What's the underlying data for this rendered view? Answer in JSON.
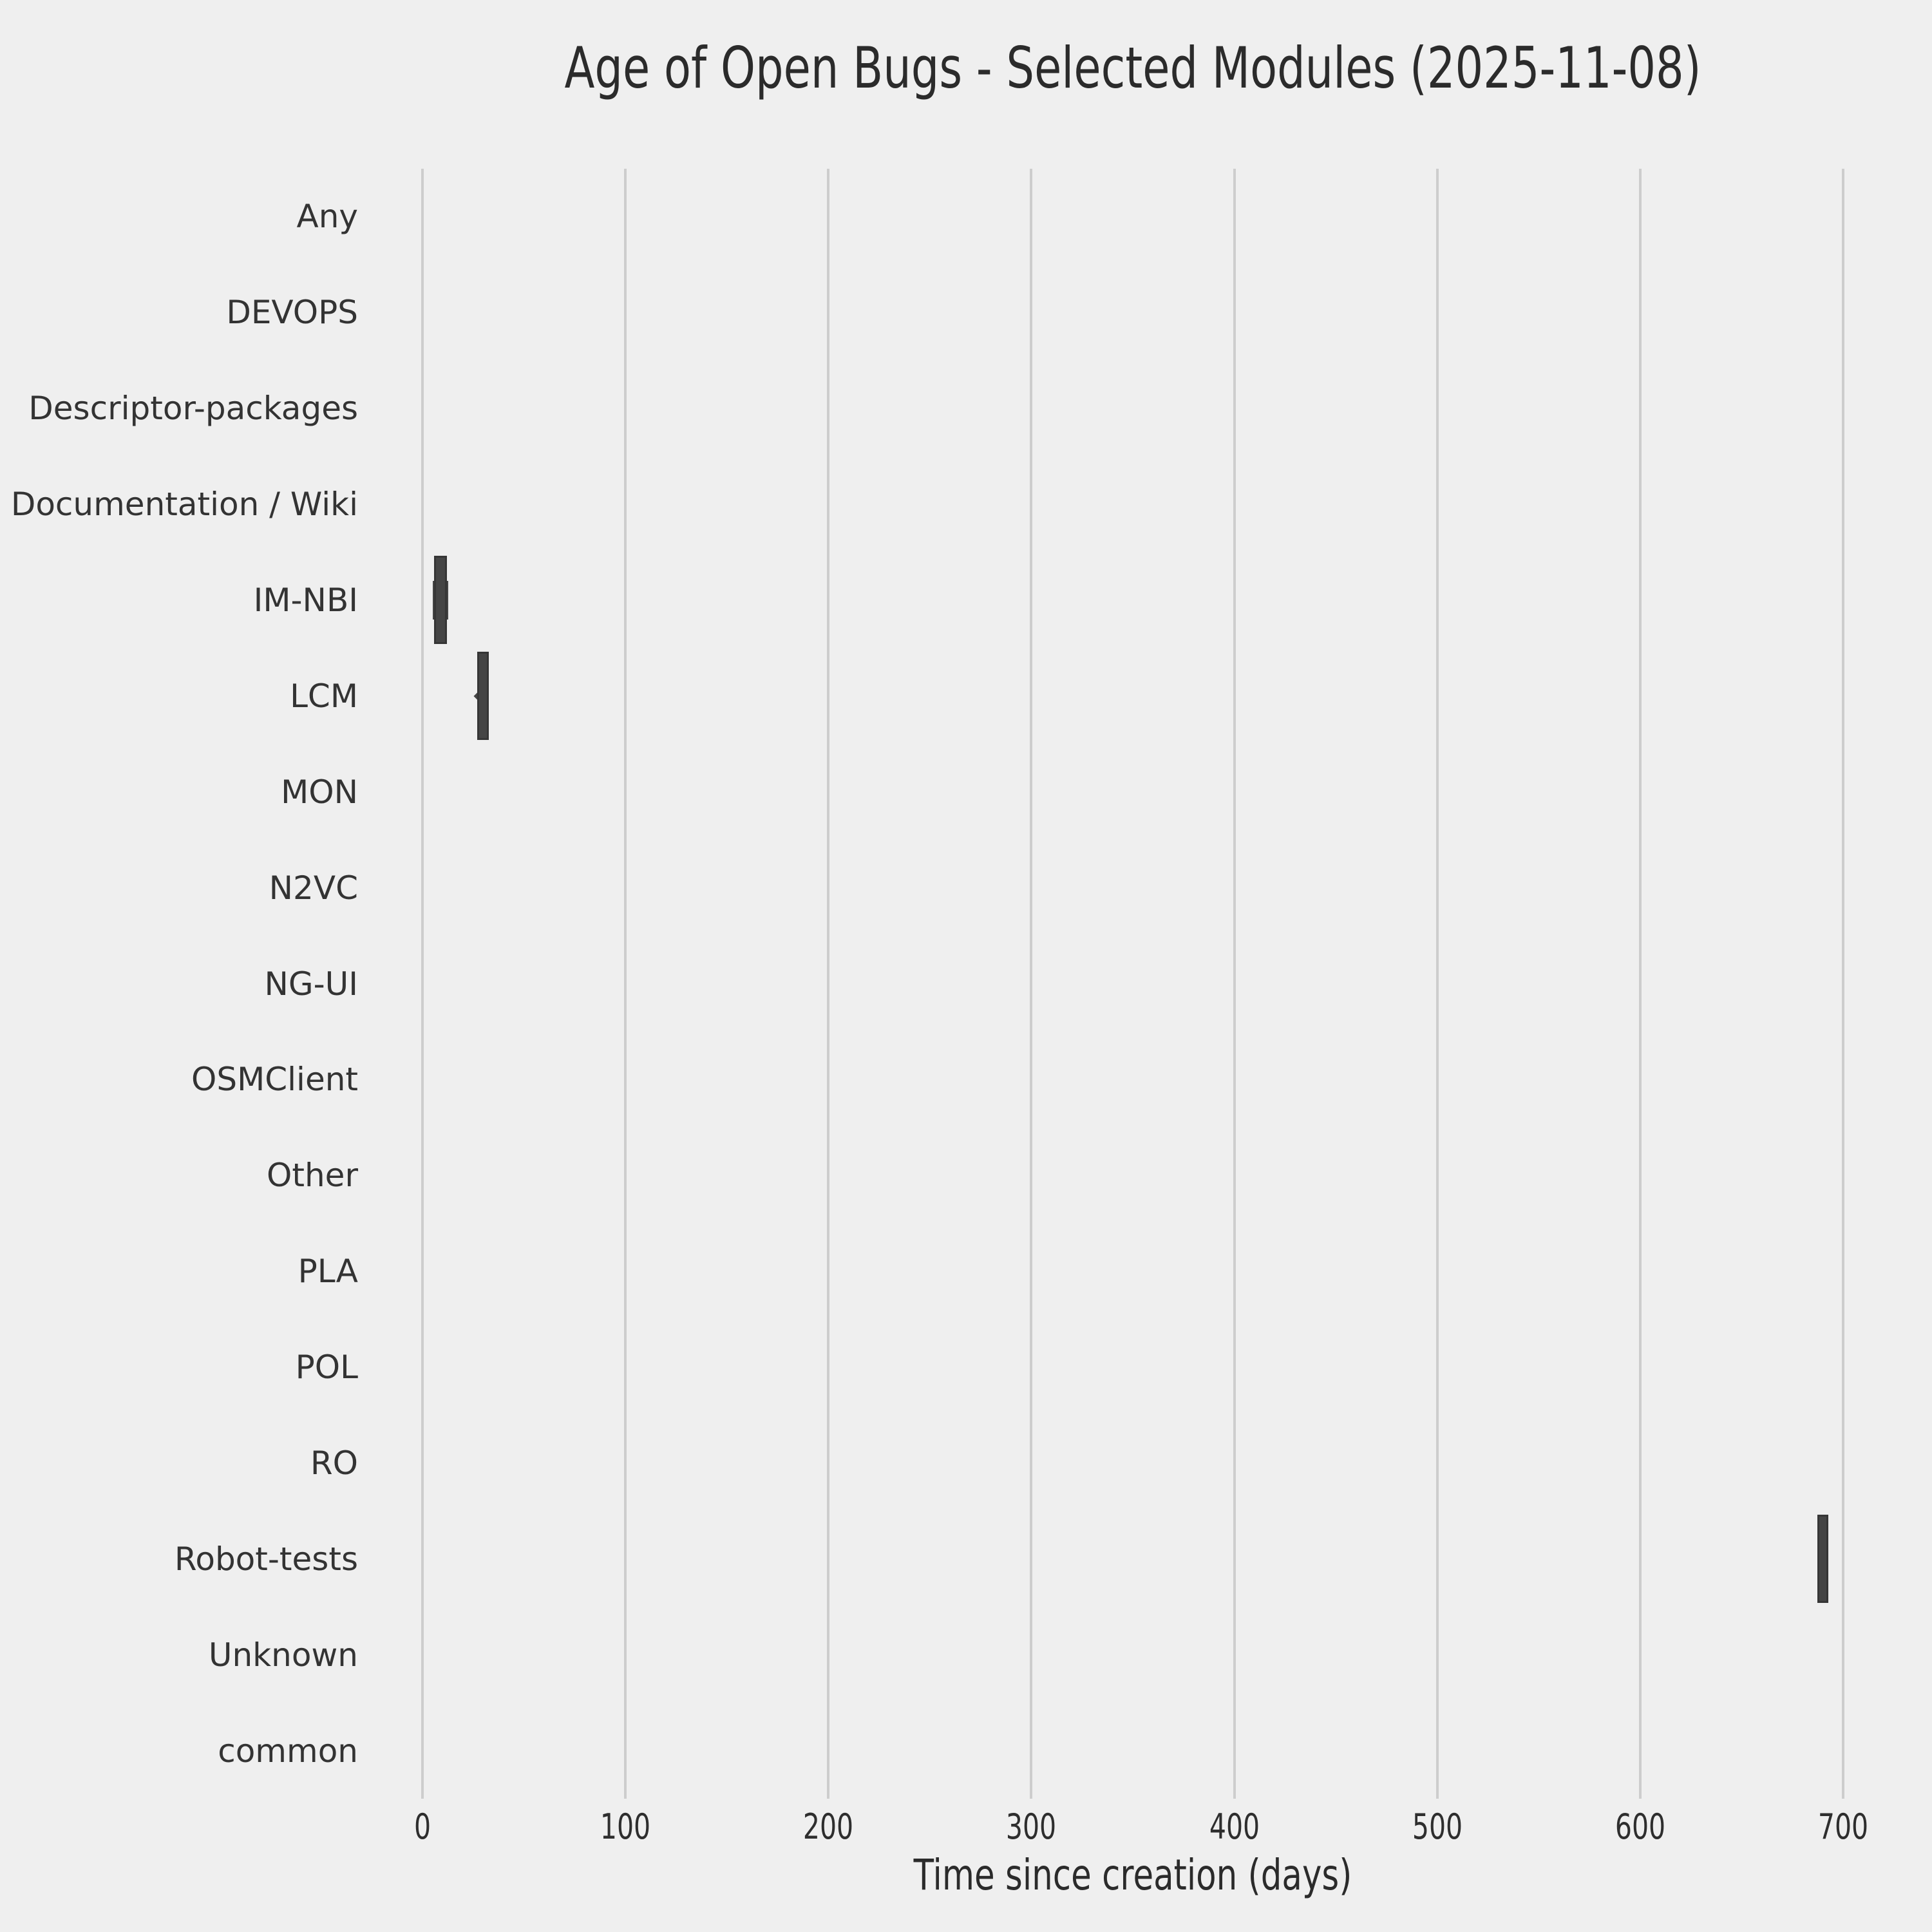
{
  "chart_data": {
    "type": "boxplot",
    "orientation": "horizontal",
    "title": "Age of Open Bugs - Selected Modules (2025-11-08)",
    "xlabel": "Time since creation (days)",
    "x_range": [
      0,
      700
    ],
    "x_ticks": [
      0,
      100,
      200,
      300,
      400,
      500,
      600,
      700
    ],
    "grid": "vertical-gridlines-only",
    "legend": "none",
    "categories": [
      "Any",
      "DEVOPS",
      "Descriptor-packages",
      "Documentation / Wiki",
      "IM-NBI",
      "LCM",
      "MON",
      "N2VC",
      "NG-UI",
      "OSMClient",
      "Other",
      "PLA",
      "POL",
      "RO",
      "Robot-tests",
      "Unknown",
      "common"
    ],
    "boxes": [
      null,
      null,
      null,
      null,
      {
        "module": "IM-NBI",
        "whisker_low": 5.2,
        "q1": 5.8,
        "q3": 12.1,
        "whisker_high": 12.8
      },
      {
        "module": "LCM",
        "whisker_low": 26.9,
        "q1": 26.9,
        "q3": 32.6,
        "whisker_high": 32.6,
        "diamond_marker": 27.8
      },
      null,
      null,
      null,
      null,
      null,
      null,
      null,
      null,
      {
        "module": "Robot-tests",
        "whisker_low": 687.2,
        "q1": 687.2,
        "q3": 692.7,
        "whisker_high": 692.7
      },
      null,
      null
    ],
    "colors": {
      "background": "#efefef",
      "grid": "#cdcdcd",
      "box_fill": "#454545",
      "box_edge": "#363636",
      "title_text": "#2b2b2b",
      "tick_text": "#2e2e2e",
      "category_text": "#333333"
    }
  }
}
